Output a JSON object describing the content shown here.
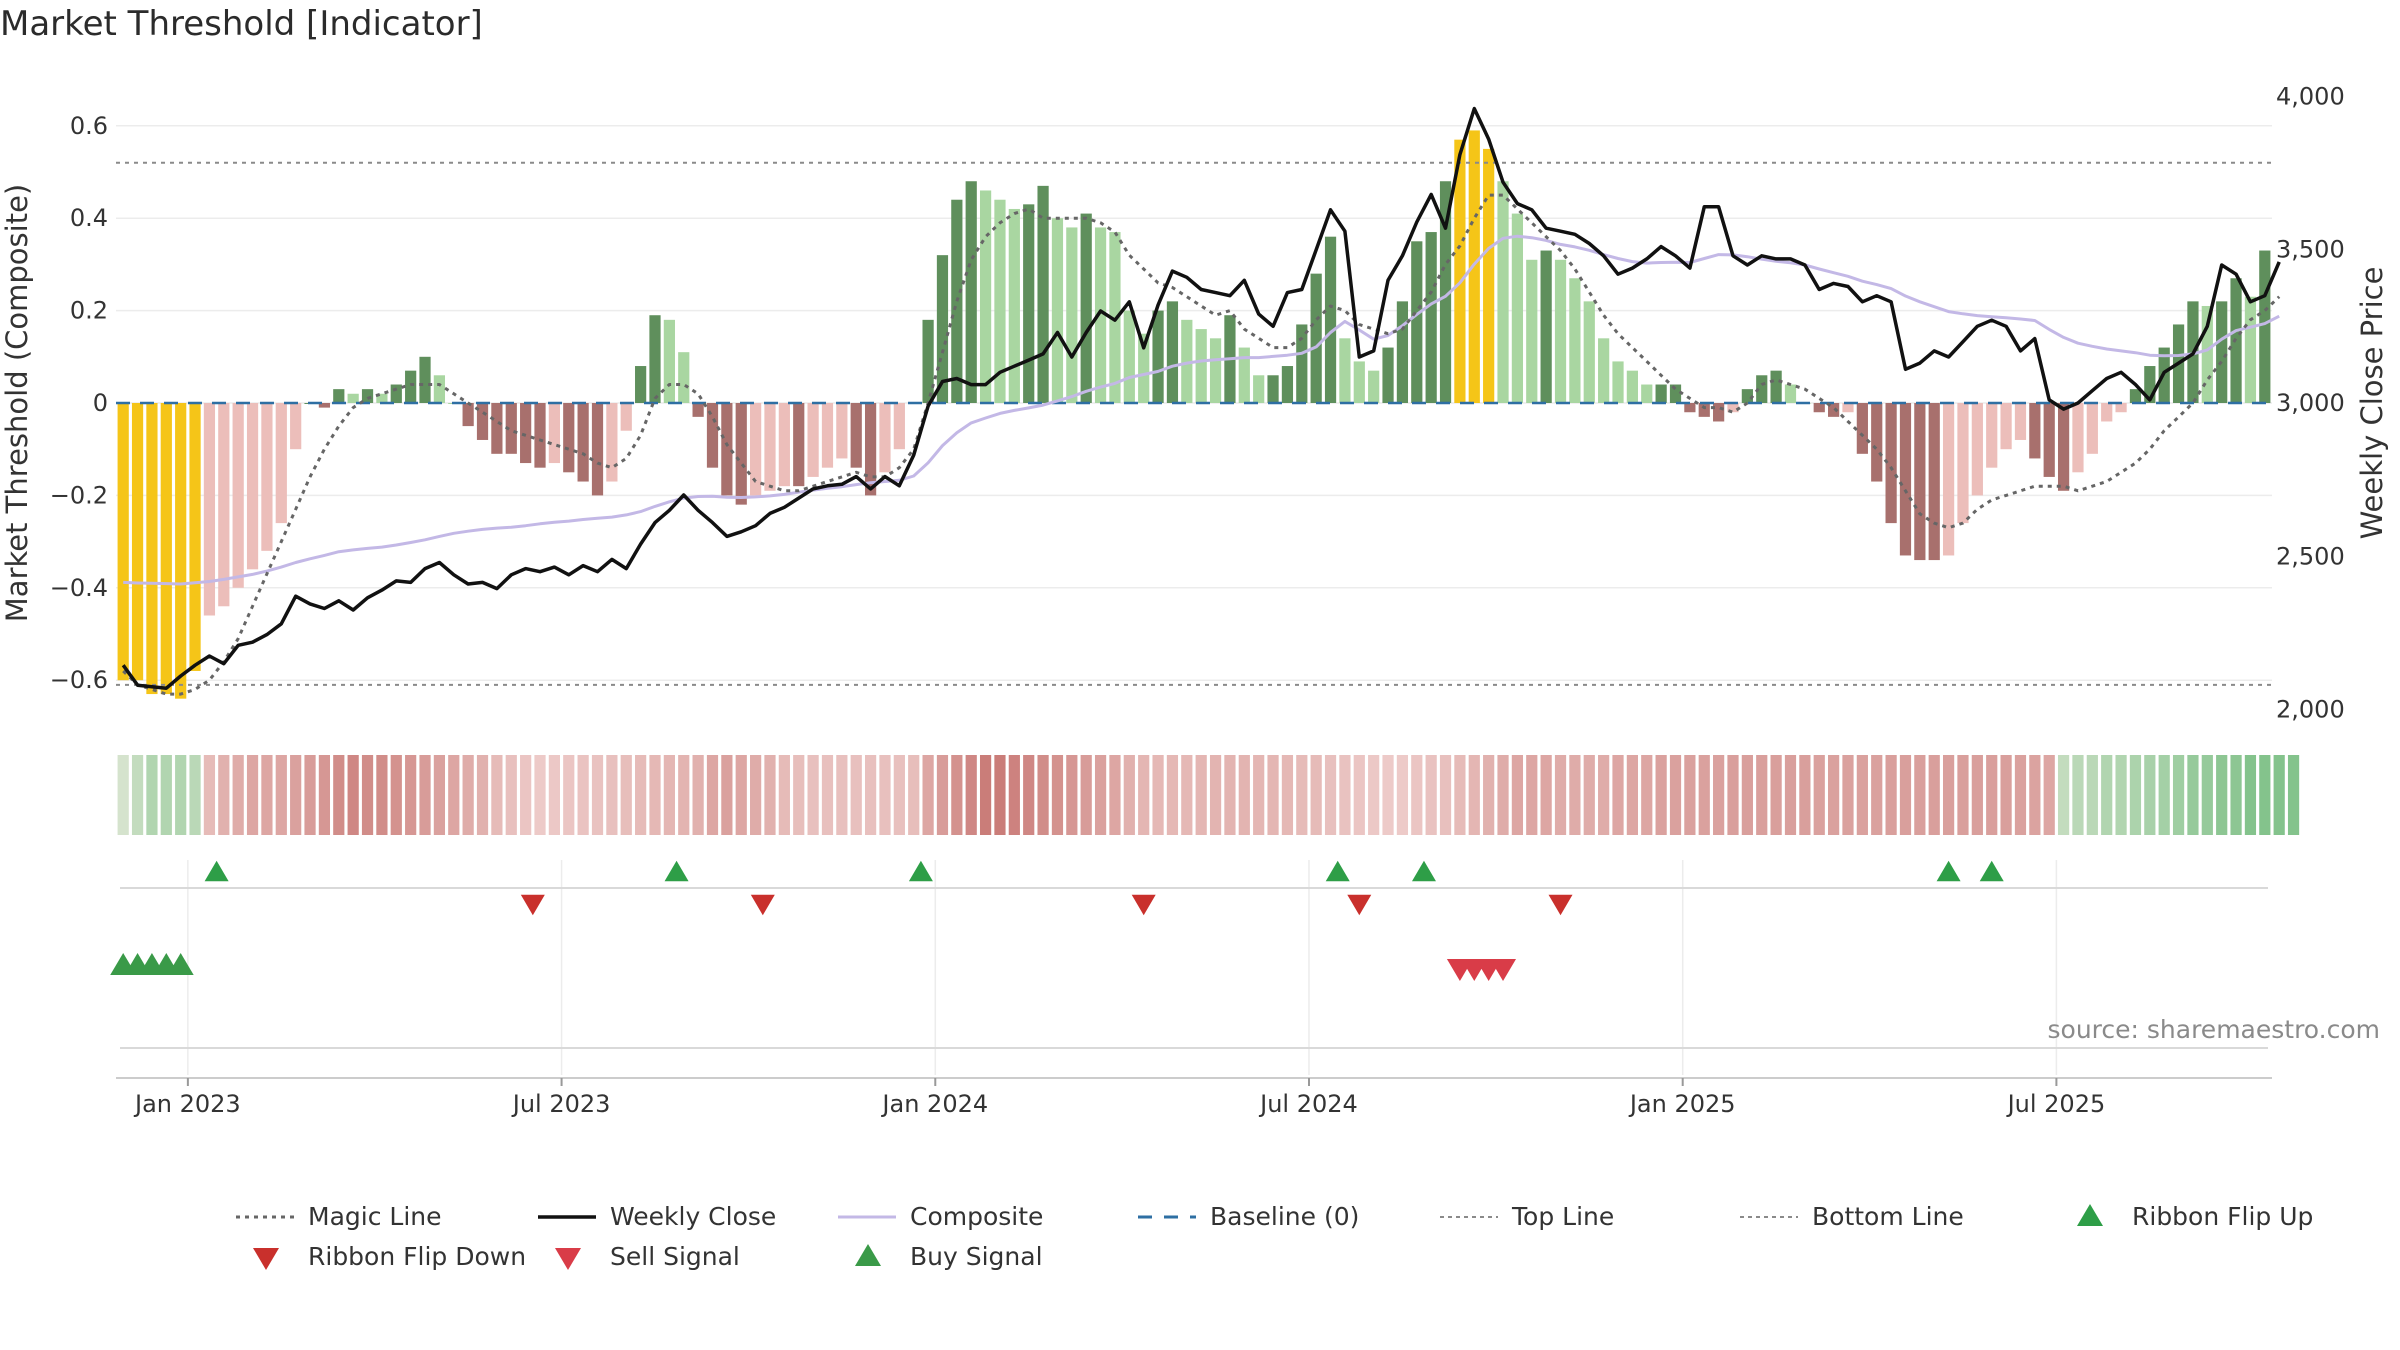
{
  "title": "Market Threshold [Indicator]",
  "source": "source: sharemaestro.com",
  "chart_data": {
    "type": "bar",
    "y_left": {
      "label": "Market Threshold (Composite)",
      "range": [
        -0.7,
        0.7
      ],
      "ticks": [
        "0.6",
        "0.4",
        "0.2",
        "0",
        "−0.2",
        "−0.4",
        "−0.6"
      ],
      "tick_values": [
        0.6,
        0.4,
        0.2,
        0,
        -0.2,
        -0.4,
        -0.6
      ]
    },
    "y_right": {
      "label": "Weekly Close Price",
      "range": [
        1900,
        4100
      ],
      "ticks": [
        "4,000",
        "3,500",
        "3,000",
        "2,500",
        "2,000"
      ],
      "tick_values": [
        4000,
        3500,
        3000,
        2500,
        2000
      ]
    },
    "x_ticks": [
      {
        "label": "Jan 2023",
        "week": 4.5
      },
      {
        "label": "Jul 2023",
        "week": 30.5
      },
      {
        "label": "Jan 2024",
        "week": 56.5
      },
      {
        "label": "Jul 2024",
        "week": 82.5
      },
      {
        "label": "Jan 2025",
        "week": 108.5
      },
      {
        "label": "Jul 2025",
        "week": 134.5
      }
    ],
    "top_line": 0.52,
    "bottom_line": -0.61,
    "composite_bars": [
      -0.6,
      -0.6,
      -0.63,
      -0.63,
      -0.64,
      -0.58,
      -0.46,
      -0.44,
      -0.4,
      -0.36,
      -0.32,
      -0.26,
      -0.1,
      0.0,
      -0.01,
      0.03,
      0.02,
      0.03,
      0.02,
      0.04,
      0.07,
      0.1,
      0.06,
      0.0,
      -0.05,
      -0.08,
      -0.11,
      -0.11,
      -0.13,
      -0.14,
      -0.13,
      -0.15,
      -0.17,
      -0.2,
      -0.17,
      -0.06,
      0.08,
      0.19,
      0.18,
      0.11,
      -0.03,
      -0.14,
      -0.2,
      -0.22,
      -0.2,
      -0.19,
      -0.18,
      -0.18,
      -0.16,
      -0.14,
      -0.12,
      -0.14,
      -0.2,
      -0.15,
      -0.1,
      0.0,
      0.18,
      0.32,
      0.44,
      0.48,
      0.46,
      0.44,
      0.42,
      0.43,
      0.47,
      0.4,
      0.38,
      0.41,
      0.38,
      0.37,
      0.2,
      0.15,
      0.2,
      0.22,
      0.18,
      0.16,
      0.14,
      0.19,
      0.12,
      0.06,
      0.06,
      0.08,
      0.17,
      0.28,
      0.36,
      0.14,
      0.09,
      0.07,
      0.12,
      0.22,
      0.35,
      0.37,
      0.48,
      0.57,
      0.59,
      0.55,
      0.48,
      0.41,
      0.31,
      0.33,
      0.31,
      0.27,
      0.22,
      0.14,
      0.09,
      0.07,
      0.04,
      0.04,
      0.04,
      -0.02,
      -0.03,
      -0.04,
      -0.02,
      0.03,
      0.06,
      0.07,
      0.04,
      0.0,
      -0.02,
      -0.03,
      -0.02,
      -0.11,
      -0.17,
      -0.26,
      -0.33,
      -0.34,
      -0.34,
      -0.33,
      -0.26,
      -0.2,
      -0.14,
      -0.1,
      -0.08,
      -0.12,
      -0.16,
      -0.19,
      -0.15,
      -0.11,
      -0.04,
      -0.02,
      0.03,
      0.08,
      0.12,
      0.17,
      0.22,
      0.21,
      0.22,
      0.27,
      0.23,
      0.33
    ],
    "bar_colors": {
      "extreme": "#f5c518",
      "pos_strong": "#5f8f5c",
      "pos_light": "#a9d6a1",
      "neg_strong": "#a8706d",
      "neg_light": "#ecbeba"
    },
    "series": [
      {
        "name": "Weekly Close",
        "axis": "right",
        "color": "#111111",
        "values": [
          2145,
          2080,
          2075,
          2070,
          2110,
          2145,
          2175,
          2150,
          2210,
          2220,
          2245,
          2280,
          2370,
          2345,
          2330,
          2355,
          2325,
          2365,
          2390,
          2420,
          2415,
          2460,
          2480,
          2440,
          2410,
          2415,
          2395,
          2440,
          2460,
          2450,
          2465,
          2440,
          2470,
          2450,
          2490,
          2460,
          2540,
          2610,
          2650,
          2700,
          2650,
          2610,
          2565,
          2580,
          2600,
          2640,
          2660,
          2690,
          2720,
          2730,
          2735,
          2760,
          2720,
          2760,
          2730,
          2830,
          2990,
          3070,
          3080,
          3060,
          3060,
          3100,
          3120,
          3140,
          3160,
          3230,
          3150,
          3230,
          3300,
          3270,
          3330,
          3180,
          3320,
          3430,
          3410,
          3370,
          3360,
          3350,
          3400,
          3290,
          3250,
          3360,
          3370,
          3500,
          3630,
          3560,
          3150,
          3170,
          3400,
          3480,
          3590,
          3680,
          3570,
          3810,
          3960,
          3860,
          3720,
          3650,
          3630,
          3570,
          3560,
          3550,
          3520,
          3480,
          3420,
          3440,
          3470,
          3510,
          3480,
          3440,
          3640,
          3640,
          3480,
          3450,
          3480,
          3470,
          3470,
          3450,
          3370,
          3390,
          3380,
          3330,
          3350,
          3330,
          3110,
          3130,
          3170,
          3150,
          3200,
          3250,
          3270,
          3250,
          3170,
          3210,
          3010,
          2980,
          3000,
          3040,
          3080,
          3100,
          3060,
          3010,
          3100,
          3130,
          3160,
          3250,
          3450,
          3420,
          3330,
          3350,
          3460
        ]
      },
      {
        "name": "Composite",
        "axis": "right",
        "color": "#c3b8e6",
        "values": [
          2415,
          2413,
          2412,
          2411,
          2410,
          2414,
          2418,
          2425,
          2433,
          2441,
          2452,
          2465,
          2480,
          2492,
          2503,
          2515,
          2521,
          2526,
          2530,
          2537,
          2545,
          2554,
          2565,
          2575,
          2582,
          2588,
          2592,
          2595,
          2600,
          2606,
          2611,
          2615,
          2620,
          2624,
          2628,
          2635,
          2646,
          2663,
          2678,
          2690,
          2695,
          2696,
          2693,
          2692,
          2694,
          2697,
          2702,
          2709,
          2716,
          2722,
          2727,
          2734,
          2740,
          2744,
          2748,
          2762,
          2805,
          2861,
          2903,
          2935,
          2951,
          2966,
          2976,
          2984,
          2993,
          3007,
          3021,
          3038,
          3052,
          3064,
          3083,
          3093,
          3103,
          3120,
          3130,
          3137,
          3141,
          3144,
          3148,
          3148,
          3152,
          3156,
          3162,
          3183,
          3230,
          3266,
          3238,
          3208,
          3220,
          3252,
          3289,
          3323,
          3348,
          3392,
          3453,
          3504,
          3537,
          3544,
          3539,
          3530,
          3517,
          3509,
          3498,
          3484,
          3471,
          3461,
          3456,
          3458,
          3459,
          3458,
          3471,
          3484,
          3483,
          3477,
          3469,
          3462,
          3457,
          3450,
          3437,
          3425,
          3413,
          3397,
          3386,
          3373,
          3349,
          3330,
          3314,
          3298,
          3291,
          3285,
          3281,
          3278,
          3274,
          3269,
          3240,
          3214,
          3195,
          3185,
          3176,
          3170,
          3164,
          3156,
          3154,
          3155,
          3160,
          3173,
          3208,
          3236,
          3247,
          3259,
          3283
        ]
      },
      {
        "name": "Magic Line",
        "axis": "left",
        "color": "#666666",
        "values": [
          -0.58,
          -0.61,
          -0.62,
          -0.63,
          -0.63,
          -0.62,
          -0.6,
          -0.56,
          -0.51,
          -0.44,
          -0.37,
          -0.3,
          -0.23,
          -0.16,
          -0.1,
          -0.05,
          -0.01,
          0.01,
          0.02,
          0.03,
          0.04,
          0.04,
          0.04,
          0.02,
          0.0,
          -0.02,
          -0.04,
          -0.06,
          -0.07,
          -0.08,
          -0.09,
          -0.1,
          -0.11,
          -0.13,
          -0.14,
          -0.12,
          -0.07,
          0.01,
          0.04,
          0.04,
          0.02,
          -0.03,
          -0.09,
          -0.13,
          -0.17,
          -0.18,
          -0.19,
          -0.19,
          -0.18,
          -0.17,
          -0.16,
          -0.15,
          -0.16,
          -0.16,
          -0.14,
          -0.1,
          0.0,
          0.11,
          0.22,
          0.31,
          0.36,
          0.39,
          0.41,
          0.42,
          0.4,
          0.4,
          0.4,
          0.4,
          0.39,
          0.37,
          0.32,
          0.29,
          0.26,
          0.25,
          0.23,
          0.21,
          0.19,
          0.2,
          0.16,
          0.14,
          0.12,
          0.12,
          0.14,
          0.18,
          0.21,
          0.2,
          0.17,
          0.16,
          0.15,
          0.16,
          0.2,
          0.24,
          0.3,
          0.34,
          0.4,
          0.45,
          0.45,
          0.42,
          0.39,
          0.36,
          0.33,
          0.29,
          0.24,
          0.19,
          0.15,
          0.12,
          0.09,
          0.06,
          0.03,
          0.01,
          -0.01,
          -0.01,
          -0.02,
          0.0,
          0.04,
          0.05,
          0.04,
          0.03,
          0.01,
          -0.01,
          -0.04,
          -0.07,
          -0.1,
          -0.14,
          -0.19,
          -0.24,
          -0.26,
          -0.27,
          -0.26,
          -0.23,
          -0.21,
          -0.2,
          -0.19,
          -0.18,
          -0.18,
          -0.18,
          -0.19,
          -0.18,
          -0.17,
          -0.15,
          -0.13,
          -0.1,
          -0.06,
          -0.03,
          0.0,
          0.05,
          0.09,
          0.14,
          0.18,
          0.2,
          0.23
        ]
      }
    ],
    "baseline": 0,
    "ribbon": [
      0.15,
      0.25,
      0.35,
      0.35,
      0.35,
      0.3,
      -0.35,
      -0.45,
      -0.5,
      -0.55,
      -0.55,
      -0.55,
      -0.6,
      -0.65,
      -0.7,
      -0.8,
      -0.85,
      -0.8,
      -0.8,
      -0.75,
      -0.7,
      -0.65,
      -0.6,
      -0.55,
      -0.5,
      -0.45,
      -0.35,
      -0.3,
      -0.25,
      -0.2,
      -0.22,
      -0.25,
      -0.27,
      -0.28,
      -0.3,
      -0.32,
      -0.35,
      -0.38,
      -0.4,
      -0.42,
      -0.45,
      -0.55,
      -0.6,
      -0.55,
      -0.5,
      -0.45,
      -0.35,
      -0.32,
      -0.3,
      -0.3,
      -0.3,
      -0.3,
      -0.3,
      -0.3,
      -0.3,
      -0.32,
      -0.55,
      -0.65,
      -0.75,
      -0.85,
      -0.95,
      -0.95,
      -0.9,
      -0.85,
      -0.8,
      -0.75,
      -0.7,
      -0.65,
      -0.6,
      -0.55,
      -0.45,
      -0.4,
      -0.38,
      -0.38,
      -0.38,
      -0.4,
      -0.42,
      -0.42,
      -0.42,
      -0.4,
      -0.4,
      -0.38,
      -0.35,
      -0.35,
      -0.3,
      -0.28,
      -0.25,
      -0.22,
      -0.2,
      -0.2,
      -0.25,
      -0.28,
      -0.3,
      -0.35,
      -0.4,
      -0.45,
      -0.5,
      -0.55,
      -0.55,
      -0.55,
      -0.5,
      -0.5,
      -0.5,
      -0.5,
      -0.55,
      -0.55,
      -0.55,
      -0.6,
      -0.6,
      -0.6,
      -0.6,
      -0.6,
      -0.62,
      -0.62,
      -0.62,
      -0.62,
      -0.62,
      -0.62,
      -0.6,
      -0.6,
      -0.6,
      -0.6,
      -0.6,
      -0.62,
      -0.62,
      -0.62,
      -0.62,
      -0.62,
      -0.62,
      -0.62,
      -0.62,
      -0.62,
      -0.6,
      -0.58,
      -0.55,
      0.25,
      0.3,
      0.3,
      0.35,
      0.35,
      0.38,
      0.4,
      0.42,
      0.45,
      0.5,
      0.5,
      0.55,
      0.55,
      0.6,
      0.6,
      0.6,
      0.6
    ],
    "ribbon_flip_up": [
      6.5,
      38.5,
      55.5,
      84.5,
      90.5,
      127,
      130
    ],
    "ribbon_flip_down": [
      28.5,
      44.5,
      71,
      86,
      100
    ],
    "buy_signal": [
      0,
      1,
      2,
      3,
      4
    ],
    "sell_signal": [
      93,
      94,
      95,
      96
    ],
    "legend": [
      {
        "name": "Magic Line",
        "kind": "dotted",
        "color": "#666666"
      },
      {
        "name": "Weekly Close",
        "kind": "solid",
        "color": "#111111"
      },
      {
        "name": "Composite",
        "kind": "solid",
        "color": "#c3b8e6"
      },
      {
        "name": "Baseline (0)",
        "kind": "dashed",
        "color": "#2e6fa3"
      },
      {
        "name": "Top Line",
        "kind": "dotted-light",
        "color": "#8a8a8a"
      },
      {
        "name": "Bottom Line",
        "kind": "dotted-light",
        "color": "#8a8a8a"
      },
      {
        "name": "Ribbon Flip Up",
        "kind": "tri-up",
        "color": "#2e9e47"
      },
      {
        "name": "Ribbon Flip Down",
        "kind": "tri-down",
        "color": "#c9302c"
      },
      {
        "name": "Sell Signal",
        "kind": "tri-down",
        "color": "#d93c48"
      },
      {
        "name": "Buy Signal",
        "kind": "tri-up",
        "color": "#3a9a48"
      }
    ]
  }
}
